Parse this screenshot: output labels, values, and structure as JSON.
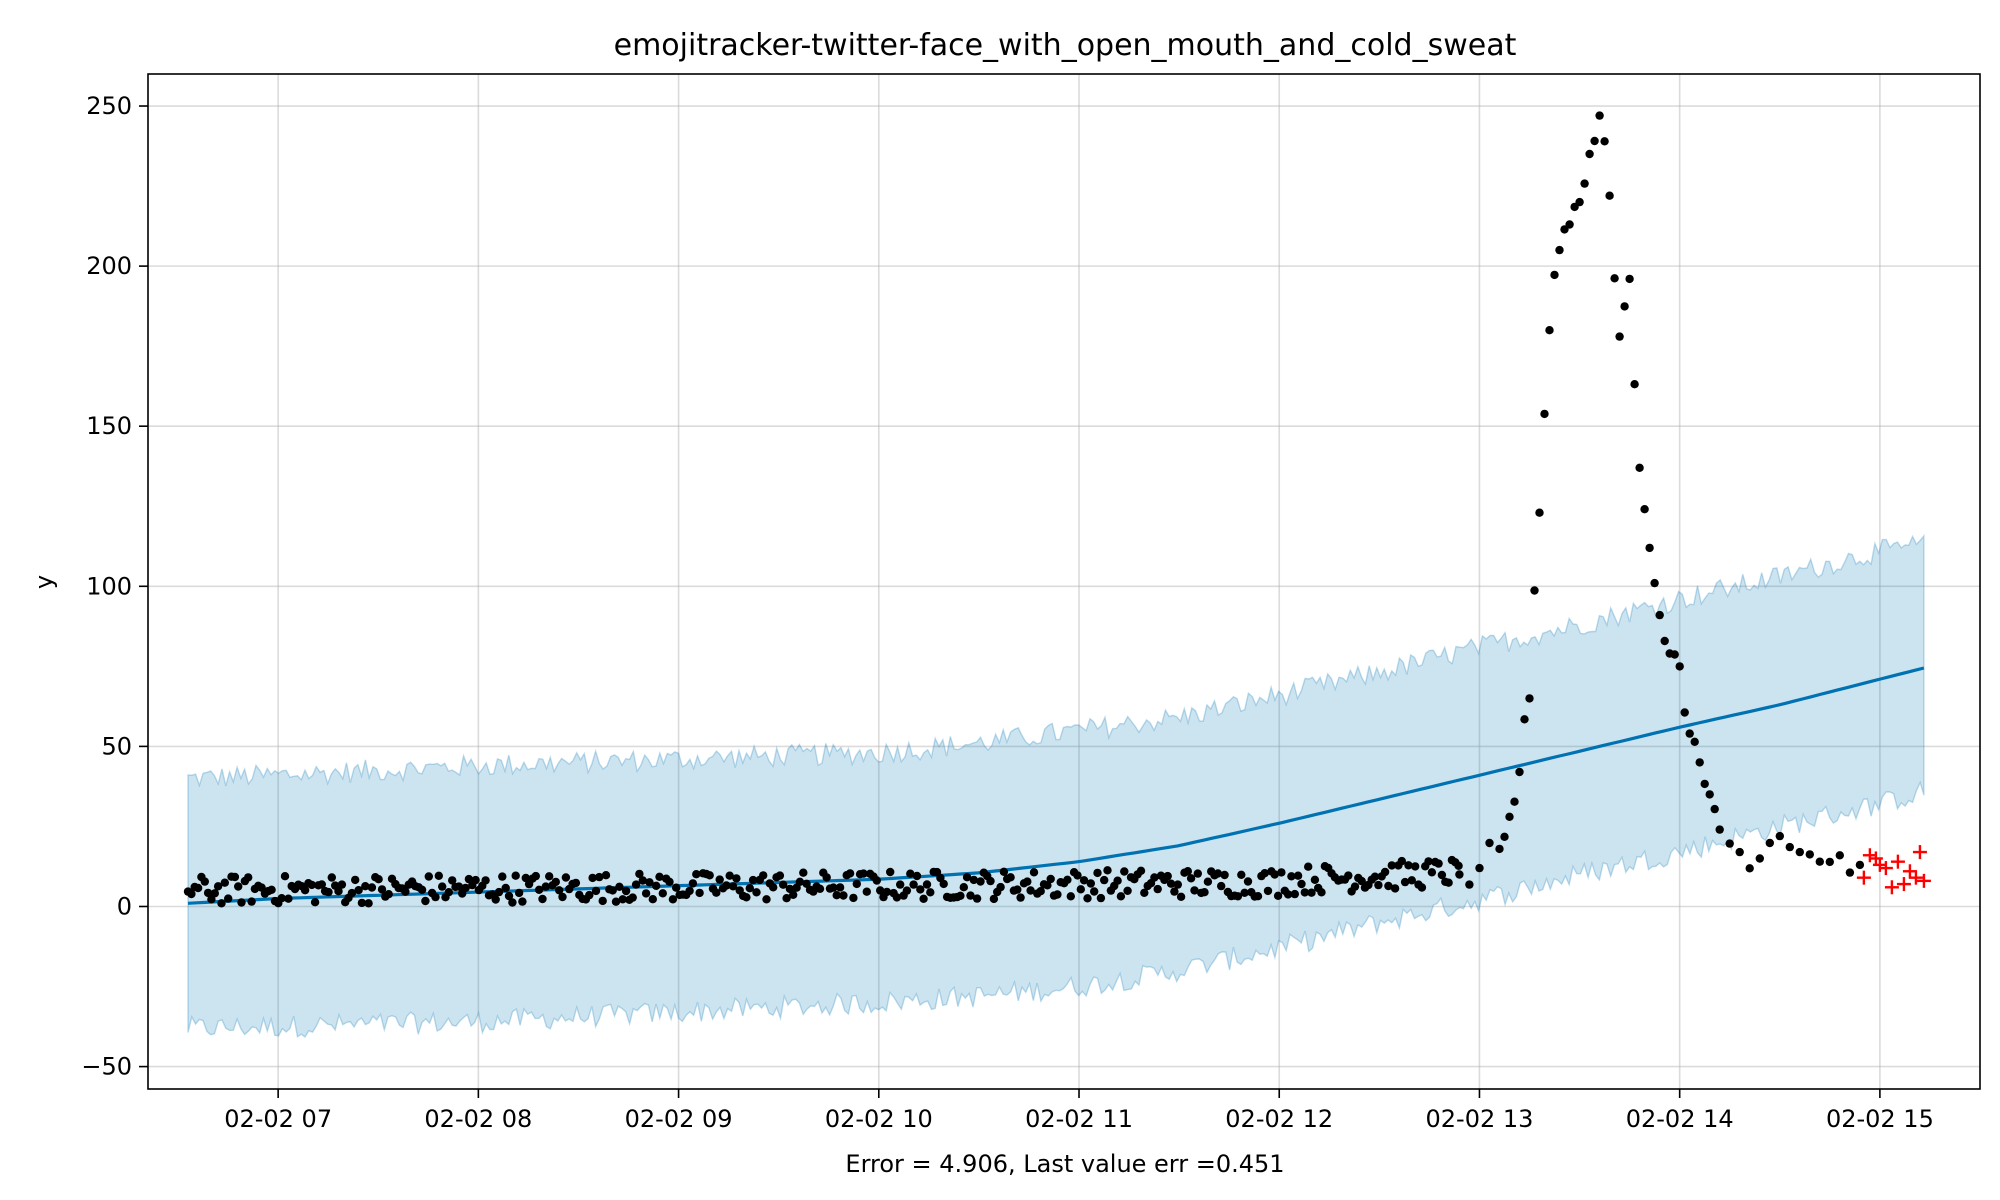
{
  "chart_data": {
    "type": "scatter",
    "title": "emojitracker-twitter-face_with_open_mouth_and_cold_sweat",
    "xlabel": "Error = 4.906, Last value err =0.451",
    "ylabel": "y",
    "x_tick_labels": [
      "02-02 07",
      "02-02 08",
      "02-02 09",
      "02-02 10",
      "02-02 11",
      "02-02 12",
      "02-02 13",
      "02-02 14",
      "02-02 15"
    ],
    "x_ticks_hours": [
      7,
      8,
      9,
      10,
      11,
      12,
      13,
      14,
      15
    ],
    "xlim_hours": [
      6.35,
      15.5
    ],
    "y_tick_labels": [
      "−50",
      "0",
      "50",
      "100",
      "150",
      "200",
      "250"
    ],
    "y_ticks": [
      -50,
      0,
      50,
      100,
      150,
      200,
      250
    ],
    "ylim": [
      -57,
      260
    ],
    "grid": true,
    "colors": {
      "observed": "#000000",
      "forecast_line": "#0072B2",
      "interval_fill": "#0072B2",
      "holdout": "#ff0000"
    },
    "forecast": {
      "x_hours": [
        6.55,
        7.0,
        8.0,
        9.0,
        10.0,
        10.5,
        11.0,
        11.5,
        12.0,
        12.5,
        13.0,
        13.5,
        14.0,
        14.5,
        15.0,
        15.22
      ],
      "yhat": [
        1,
        2.5,
        4.5,
        6.5,
        8.5,
        10.5,
        14,
        19,
        26,
        33.5,
        41,
        48.5,
        56,
        63,
        71,
        74.5
      ],
      "lower": [
        -38,
        -37.5,
        -36,
        -33,
        -30,
        -28,
        -25,
        -20,
        -13,
        -5,
        2,
        10,
        17,
        25,
        32,
        36
      ],
      "upper": [
        40,
        41,
        44,
        46,
        48,
        51,
        55,
        59,
        66,
        73,
        81,
        88,
        96,
        103,
        111,
        113
      ]
    },
    "observed_peak": {
      "x_hours": [
        12.9,
        13.0,
        13.1,
        13.15,
        13.2,
        13.25,
        13.3,
        13.35,
        13.4,
        13.45,
        13.5,
        13.55,
        13.6,
        13.65,
        13.7,
        13.75,
        13.8,
        13.85,
        13.9,
        13.95,
        14.0,
        14.05,
        14.1,
        14.15,
        14.2,
        14.3,
        14.4,
        14.5,
        14.6,
        14.7,
        14.8,
        14.9
      ],
      "y": [
        10,
        12,
        18,
        28,
        42,
        65,
        123,
        180,
        205,
        213,
        220,
        235,
        247,
        222,
        178,
        196,
        137,
        112,
        91,
        79,
        75,
        54,
        45,
        35,
        24,
        17,
        15,
        22,
        17,
        14,
        16,
        13
      ]
    },
    "holdout": {
      "x_hours": [
        14.92,
        14.95,
        14.98,
        15.0,
        15.03,
        15.06,
        15.09,
        15.12,
        15.15,
        15.18,
        15.2,
        15.22
      ],
      "y": [
        9,
        16,
        15,
        13,
        12,
        6,
        14,
        7,
        11,
        9,
        17,
        8
      ]
    }
  }
}
